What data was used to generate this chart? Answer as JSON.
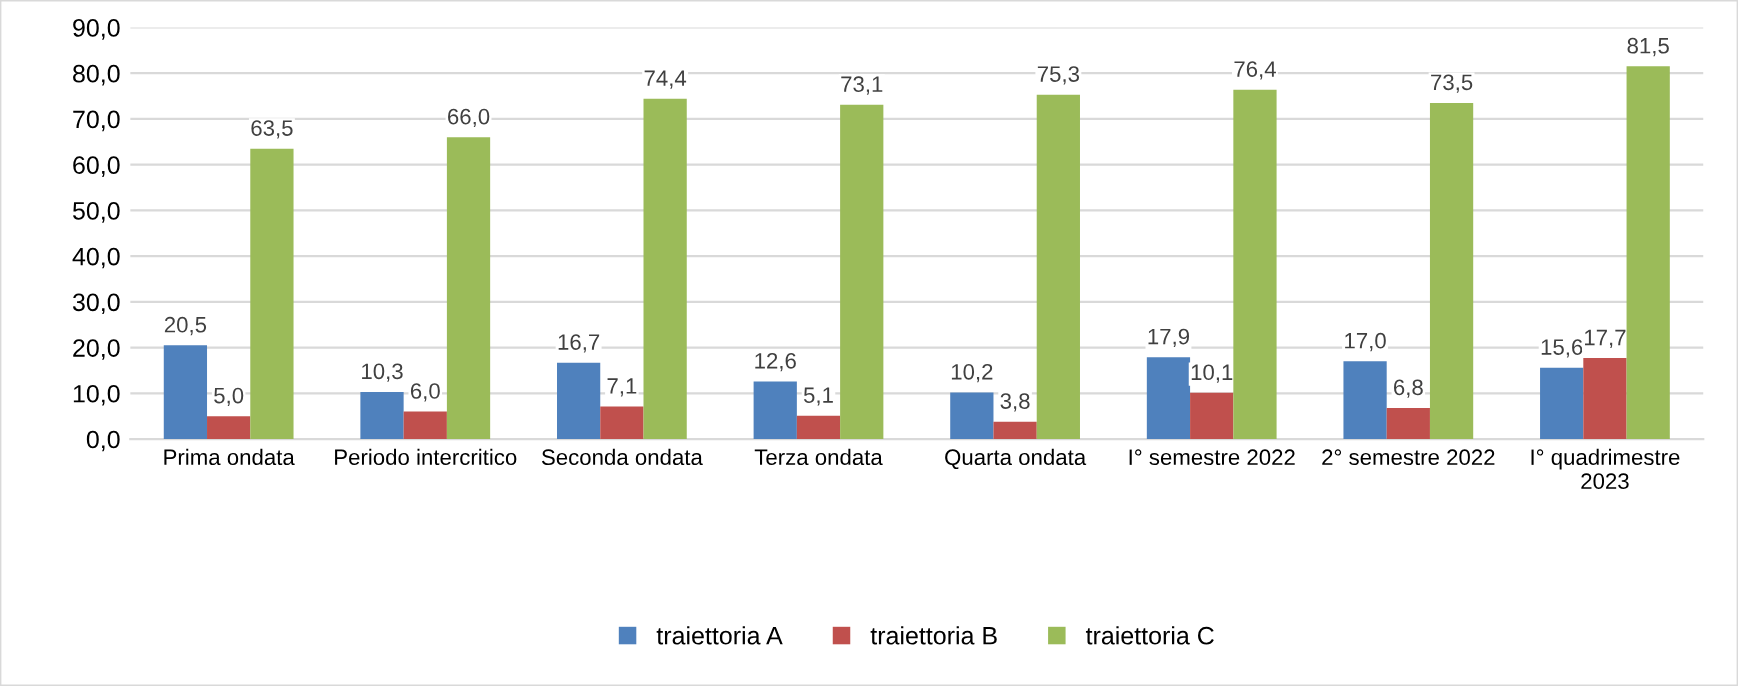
{
  "chart_data": {
    "type": "bar",
    "categories": [
      "Prima ondata",
      "Periodo intercritico",
      "Seconda ondata",
      "Terza ondata",
      "Quarta ondata",
      "I° semestre 2022",
      "2° semestre 2022",
      "I° quadrimestre 2023"
    ],
    "series": [
      {
        "name": "traiettoria A",
        "color": "#4f81bd",
        "values": [
          20.5,
          10.3,
          16.7,
          12.6,
          10.2,
          17.9,
          17.0,
          15.6
        ],
        "value_labels": [
          "20,5",
          "10,3",
          "16,7",
          "12,6",
          "10,2",
          "17,9",
          "17,0",
          "15,6"
        ]
      },
      {
        "name": "traiettoria B",
        "color": "#c0504d",
        "values": [
          5.0,
          6.0,
          7.1,
          5.1,
          3.8,
          10.1,
          6.8,
          17.7
        ],
        "value_labels": [
          "5,0",
          "6,0",
          "7,1",
          "5,1",
          "3,8",
          "10,1",
          "6,8",
          "17,7"
        ]
      },
      {
        "name": "traiettoria C",
        "color": "#9bbb59",
        "values": [
          63.5,
          66.0,
          74.4,
          73.1,
          75.3,
          76.4,
          73.5,
          81.5
        ],
        "value_labels": [
          "63,5",
          "66,0",
          "74,4",
          "73,1",
          "75,3",
          "76,4",
          "73,5",
          "81,5"
        ]
      }
    ],
    "ylim": [
      0,
      90
    ],
    "yticks": [
      {
        "value": 0,
        "label": "0,0"
      },
      {
        "value": 10,
        "label": "10,0"
      },
      {
        "value": 20,
        "label": "20,0"
      },
      {
        "value": 30,
        "label": "30,0"
      },
      {
        "value": 40,
        "label": "40,0"
      },
      {
        "value": 50,
        "label": "50,0"
      },
      {
        "value": 60,
        "label": "60,0"
      },
      {
        "value": 70,
        "label": "70,0"
      },
      {
        "value": 80,
        "label": "80,0"
      },
      {
        "value": 90,
        "label": "90,0"
      }
    ],
    "grid": "y",
    "legend": "bottom"
  }
}
